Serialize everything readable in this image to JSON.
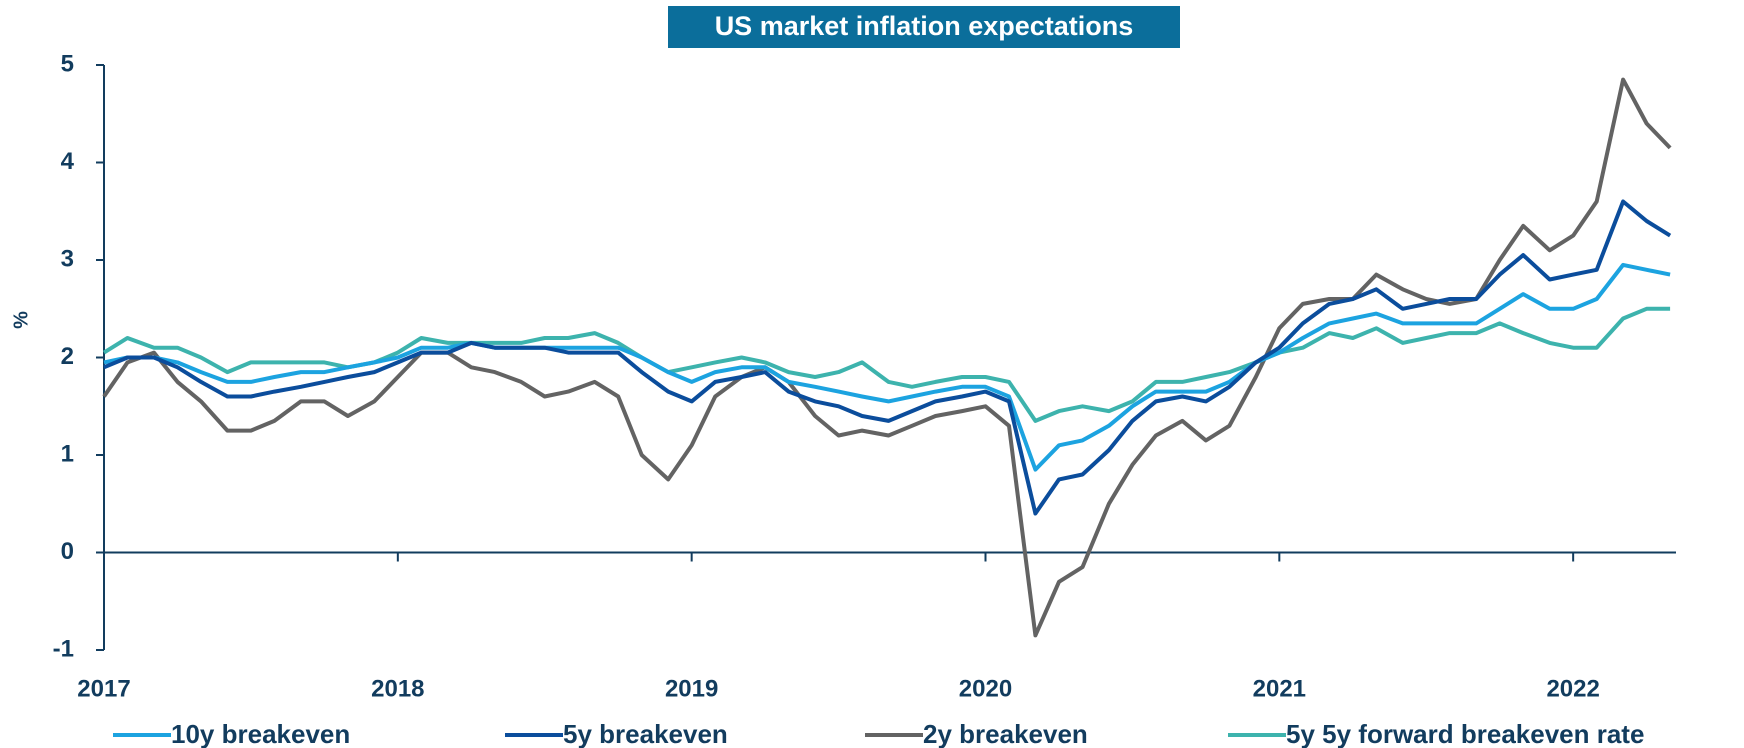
{
  "chart_data": {
    "type": "line",
    "title": "US market inflation expectations",
    "ylabel": "%",
    "x": [
      2017,
      2017.08,
      2017.17,
      2017.25,
      2017.33,
      2017.42,
      2017.5,
      2017.58,
      2017.67,
      2017.75,
      2017.83,
      2017.92,
      2018,
      2018.08,
      2018.17,
      2018.25,
      2018.33,
      2018.42,
      2018.5,
      2018.58,
      2018.67,
      2018.75,
      2018.83,
      2018.92,
      2019,
      2019.08,
      2019.17,
      2019.25,
      2019.33,
      2019.42,
      2019.5,
      2019.58,
      2019.67,
      2019.75,
      2019.83,
      2019.92,
      2020,
      2020.08,
      2020.17,
      2020.25,
      2020.33,
      2020.42,
      2020.5,
      2020.58,
      2020.67,
      2020.75,
      2020.83,
      2020.92,
      2021,
      2021.08,
      2021.17,
      2021.25,
      2021.33,
      2021.42,
      2021.5,
      2021.58,
      2021.67,
      2021.75,
      2021.83,
      2021.92,
      2022,
      2022.08,
      2022.17,
      2022.25,
      2022.33
    ],
    "series": [
      {
        "name": "10y breakeven",
        "color": "#1ca3e0",
        "values": [
          1.95,
          2.0,
          2.0,
          1.95,
          1.85,
          1.75,
          1.75,
          1.8,
          1.85,
          1.85,
          1.9,
          1.95,
          2.0,
          2.1,
          2.1,
          2.15,
          2.1,
          2.1,
          2.1,
          2.1,
          2.1,
          2.1,
          2.0,
          1.85,
          1.75,
          1.85,
          1.9,
          1.9,
          1.75,
          1.7,
          1.65,
          1.6,
          1.55,
          1.6,
          1.65,
          1.7,
          1.7,
          1.6,
          0.85,
          1.1,
          1.15,
          1.3,
          1.5,
          1.65,
          1.65,
          1.65,
          1.75,
          1.95,
          2.05,
          2.2,
          2.35,
          2.4,
          2.45,
          2.35,
          2.35,
          2.35,
          2.35,
          2.5,
          2.65,
          2.5,
          2.5,
          2.6,
          2.95,
          2.9,
          2.85
        ]
      },
      {
        "name": "5y breakeven",
        "color": "#0b4d9c",
        "values": [
          1.9,
          2.0,
          2.0,
          1.9,
          1.75,
          1.6,
          1.6,
          1.65,
          1.7,
          1.75,
          1.8,
          1.85,
          1.95,
          2.05,
          2.05,
          2.15,
          2.1,
          2.1,
          2.1,
          2.05,
          2.05,
          2.05,
          1.85,
          1.65,
          1.55,
          1.75,
          1.8,
          1.85,
          1.65,
          1.55,
          1.5,
          1.4,
          1.35,
          1.45,
          1.55,
          1.6,
          1.65,
          1.55,
          0.4,
          0.75,
          0.8,
          1.05,
          1.35,
          1.55,
          1.6,
          1.55,
          1.7,
          1.95,
          2.1,
          2.35,
          2.55,
          2.6,
          2.7,
          2.5,
          2.55,
          2.6,
          2.6,
          2.85,
          3.05,
          2.8,
          2.85,
          2.9,
          3.6,
          3.4,
          3.25
        ]
      },
      {
        "name": "2y breakeven",
        "color": "#636363",
        "values": [
          1.6,
          1.95,
          2.05,
          1.75,
          1.55,
          1.25,
          1.25,
          1.35,
          1.55,
          1.55,
          1.4,
          1.55,
          1.8,
          2.05,
          2.05,
          1.9,
          1.85,
          1.75,
          1.6,
          1.65,
          1.75,
          1.6,
          1.0,
          0.75,
          1.1,
          1.6,
          1.8,
          1.9,
          1.75,
          1.4,
          1.2,
          1.25,
          1.2,
          1.3,
          1.4,
          1.45,
          1.5,
          1.3,
          -0.85,
          -0.3,
          -0.15,
          0.5,
          0.9,
          1.2,
          1.35,
          1.15,
          1.3,
          1.8,
          2.3,
          2.55,
          2.6,
          2.6,
          2.85,
          2.7,
          2.6,
          2.55,
          2.6,
          3.0,
          3.35,
          3.1,
          3.25,
          3.6,
          4.85,
          4.4,
          4.15
        ]
      },
      {
        "name": "5y 5y forward breakeven rate",
        "color": "#3db3ad",
        "values": [
          2.05,
          2.2,
          2.1,
          2.1,
          2.0,
          1.85,
          1.95,
          1.95,
          1.95,
          1.95,
          1.9,
          1.95,
          2.05,
          2.2,
          2.15,
          2.15,
          2.15,
          2.15,
          2.2,
          2.2,
          2.25,
          2.15,
          2.0,
          1.85,
          1.9,
          1.95,
          2.0,
          1.95,
          1.85,
          1.8,
          1.85,
          1.95,
          1.75,
          1.7,
          1.75,
          1.8,
          1.8,
          1.75,
          1.35,
          1.45,
          1.5,
          1.45,
          1.55,
          1.75,
          1.75,
          1.8,
          1.85,
          1.95,
          2.05,
          2.1,
          2.25,
          2.2,
          2.3,
          2.15,
          2.2,
          2.25,
          2.25,
          2.35,
          2.25,
          2.15,
          2.1,
          2.1,
          2.4,
          2.5,
          2.5
        ]
      }
    ],
    "xlim": [
      2017,
      2022.35
    ],
    "xticks": [
      2017,
      2018,
      2019,
      2020,
      2021,
      2022
    ],
    "ylim": [
      -1,
      5
    ],
    "yticks": [
      -1,
      0,
      1,
      2,
      3,
      4,
      5
    ],
    "grid": false
  }
}
